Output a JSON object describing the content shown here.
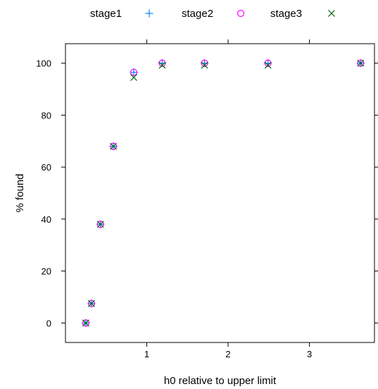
{
  "chart_data": {
    "type": "scatter",
    "title": "",
    "xlabel": "h0 relative to upper limit",
    "ylabel": "% found",
    "xlim": [
      0.0,
      3.8
    ],
    "ylim": [
      -7.5,
      107.5
    ],
    "xticks": [
      1,
      2,
      3
    ],
    "yticks": [
      0,
      20,
      40,
      60,
      80,
      100
    ],
    "grid": false,
    "legend_position": "top",
    "series": [
      {
        "name": "stage1",
        "marker": "plus",
        "color": "#0080ff",
        "points": [
          {
            "x": 0.25,
            "y": 0
          },
          {
            "x": 0.32,
            "y": 7.5
          },
          {
            "x": 0.43,
            "y": 38
          },
          {
            "x": 0.59,
            "y": 68
          },
          {
            "x": 0.84,
            "y": 96.5
          },
          {
            "x": 1.19,
            "y": 100
          },
          {
            "x": 1.71,
            "y": 100
          },
          {
            "x": 2.49,
            "y": 100
          },
          {
            "x": 3.63,
            "y": 100
          }
        ]
      },
      {
        "name": "stage2",
        "marker": "circle",
        "color": "#ff00ff",
        "points": [
          {
            "x": 0.25,
            "y": 0
          },
          {
            "x": 0.32,
            "y": 7.5
          },
          {
            "x": 0.43,
            "y": 38
          },
          {
            "x": 0.59,
            "y": 68
          },
          {
            "x": 0.84,
            "y": 96.5
          },
          {
            "x": 1.19,
            "y": 100
          },
          {
            "x": 1.71,
            "y": 100
          },
          {
            "x": 2.49,
            "y": 100
          },
          {
            "x": 3.63,
            "y": 100
          }
        ]
      },
      {
        "name": "stage3",
        "marker": "cross",
        "color": "#006400",
        "points": [
          {
            "x": 0.25,
            "y": 0
          },
          {
            "x": 0.32,
            "y": 7.5
          },
          {
            "x": 0.43,
            "y": 38
          },
          {
            "x": 0.59,
            "y": 68
          },
          {
            "x": 0.84,
            "y": 94.5
          },
          {
            "x": 1.19,
            "y": 99.2
          },
          {
            "x": 1.71,
            "y": 99.2
          },
          {
            "x": 2.49,
            "y": 99.2
          },
          {
            "x": 3.63,
            "y": 100
          }
        ]
      }
    ]
  }
}
